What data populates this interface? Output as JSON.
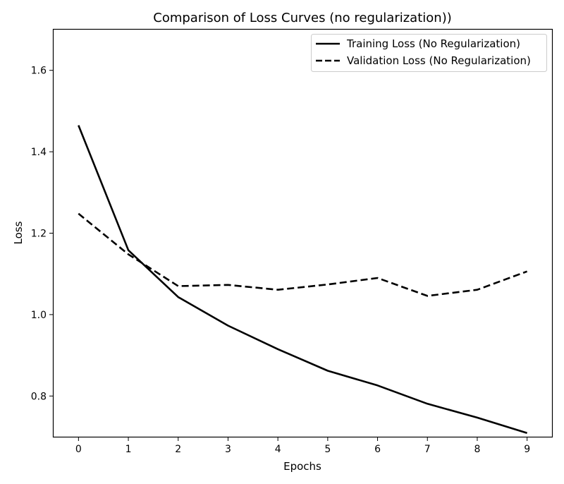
{
  "chart_data": {
    "type": "line",
    "title": "Comparison of Loss Curves (no regularization))",
    "xlabel": "Epochs",
    "ylabel": "Loss",
    "x": [
      0,
      1,
      2,
      3,
      4,
      5,
      6,
      7,
      8,
      9
    ],
    "xlim": [
      -0.5,
      9.5
    ],
    "ylim": [
      0.7,
      1.7
    ],
    "xticks": [
      0,
      1,
      2,
      3,
      4,
      5,
      6,
      7,
      8,
      9
    ],
    "yticks": [
      0.8,
      1.0,
      1.2,
      1.4,
      1.6
    ],
    "ytick_labels": [
      "0.8",
      "1.0",
      "1.2",
      "1.4",
      "1.6"
    ],
    "grid": false,
    "legend_position": "top-right",
    "series": [
      {
        "name": "Training Loss (No Regularization)",
        "style": "solid",
        "color": "#000000",
        "values": [
          1.465,
          1.158,
          1.043,
          0.973,
          0.915,
          0.862,
          0.826,
          0.781,
          0.747,
          0.709
        ]
      },
      {
        "name": "Validation Loss (No Regularization)",
        "style": "dashed",
        "color": "#000000",
        "values": [
          1.248,
          1.148,
          1.07,
          1.073,
          1.061,
          1.074,
          1.09,
          1.046,
          1.061,
          1.106
        ]
      }
    ]
  }
}
